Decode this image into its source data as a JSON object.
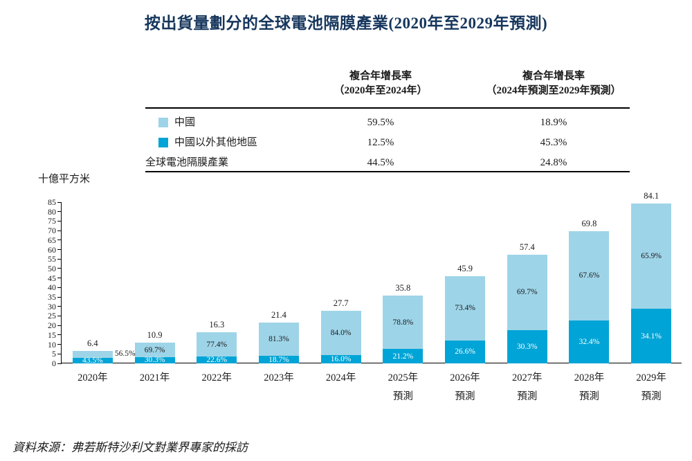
{
  "title": "按出貨量劃分的全球電池隔膜產業(2020年至2029年預測)",
  "source": "資料來源：弗若斯特沙利文對業界專家的採訪",
  "colors": {
    "china": "#9ED4E8",
    "others": "#00A4D6",
    "title": "#16365C"
  },
  "cagr_table": {
    "columns": [
      {
        "line1": "複合年增長率",
        "line2": "（2020年至2024年）"
      },
      {
        "line1": "複合年增長率",
        "line2": "（2024年預測至2029年預測）"
      }
    ],
    "rows": [
      {
        "label": "中國",
        "col1": "59.5%",
        "col2": "18.9%"
      },
      {
        "label": "中國以外其他地區",
        "col1": "12.5%",
        "col2": "45.3%"
      },
      {
        "label": "全球電池隔膜產業",
        "col1": "44.5%",
        "col2": "24.8%"
      }
    ]
  },
  "chart_data": {
    "type": "bar",
    "stacked": true,
    "title": "按出貨量劃分的全球電池隔膜產業(2020年至2029年預測)",
    "ylabel": "十億平方米",
    "ylim": [
      0,
      85
    ],
    "ytick_step": 5,
    "grid": false,
    "legend_position": "table-top",
    "categories": [
      {
        "line1": "2020年",
        "line2": ""
      },
      {
        "line1": "2021年",
        "line2": ""
      },
      {
        "line1": "2022年",
        "line2": ""
      },
      {
        "line1": "2023年",
        "line2": ""
      },
      {
        "line1": "2024年",
        "line2": ""
      },
      {
        "line1": "2025年",
        "line2": "預測"
      },
      {
        "line1": "2026年",
        "line2": "預測"
      },
      {
        "line1": "2027年",
        "line2": "預測"
      },
      {
        "line1": "2028年",
        "line2": "預測"
      },
      {
        "line1": "2029年",
        "line2": "預測"
      }
    ],
    "totals": [
      6.4,
      10.9,
      16.3,
      21.4,
      27.7,
      35.8,
      45.9,
      57.4,
      69.8,
      84.1
    ],
    "series": [
      {
        "name": "中國以外其他地區",
        "color_key": "others",
        "pct": [
          43.5,
          30.3,
          22.6,
          18.7,
          16.0,
          21.2,
          26.6,
          30.3,
          32.4,
          34.1
        ]
      },
      {
        "name": "中國",
        "color_key": "china",
        "pct": [
          56.5,
          69.7,
          77.4,
          81.3,
          84.0,
          78.8,
          73.4,
          69.7,
          67.6,
          65.9
        ]
      }
    ]
  }
}
